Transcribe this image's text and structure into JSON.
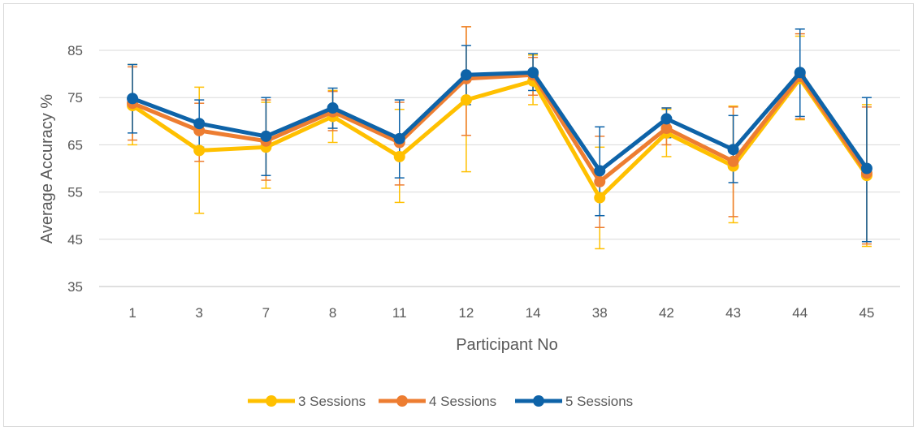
{
  "chart_data": {
    "type": "line",
    "title": "",
    "xlabel": "Participant No",
    "ylabel": "Average Accuracy %",
    "categories": [
      "1",
      "3",
      "7",
      "8",
      "11",
      "12",
      "14",
      "38",
      "42",
      "43",
      "44",
      "45"
    ],
    "ylim": [
      35,
      90
    ],
    "yticks": [
      35,
      45,
      55,
      65,
      75,
      85
    ],
    "grid": true,
    "legend_position": "bottom",
    "series": [
      {
        "name": "3 Sessions",
        "color": "#FFC000",
        "values": [
          73.3,
          63.8,
          64.5,
          71.0,
          62.5,
          74.5,
          78.5,
          53.8,
          67.5,
          60.5,
          79.0,
          58.5
        ],
        "error_low": [
          65.0,
          50.5,
          55.8,
          65.5,
          52.8,
          59.3,
          73.5,
          43.0,
          62.5,
          48.5,
          70.3,
          43.5
        ],
        "error_high": [
          82.0,
          77.2,
          74.0,
          76.5,
          72.5,
          90.0,
          84.0,
          64.5,
          72.5,
          73.2,
          88.0,
          73.5
        ]
      },
      {
        "name": "4 Sessions",
        "color": "#ED7D31",
        "values": [
          73.8,
          68.0,
          65.8,
          72.0,
          65.5,
          79.0,
          79.8,
          57.2,
          68.5,
          61.5,
          79.5,
          59.0
        ],
        "error_low": [
          66.0,
          61.5,
          57.5,
          68.0,
          56.5,
          67.0,
          75.5,
          47.5,
          65.0,
          49.8,
          70.5,
          44.0
        ],
        "error_high": [
          81.5,
          73.8,
          74.5,
          76.3,
          74.0,
          90.0,
          83.5,
          66.8,
          72.8,
          73.0,
          88.5,
          73.0
        ]
      },
      {
        "name": "5 Sessions",
        "color": "#0E63A8",
        "values": [
          74.8,
          69.5,
          66.8,
          72.8,
          66.3,
          79.8,
          80.3,
          59.5,
          70.5,
          64.0,
          80.3,
          60.0
        ],
        "error_low": [
          67.5,
          64.5,
          58.5,
          68.5,
          58.0,
          73.5,
          76.5,
          50.0,
          66.5,
          57.0,
          71.0,
          44.5
        ],
        "error_high": [
          82.0,
          74.5,
          75.0,
          77.0,
          74.5,
          86.0,
          84.3,
          68.8,
          72.8,
          71.2,
          89.5,
          75.0
        ]
      }
    ]
  }
}
